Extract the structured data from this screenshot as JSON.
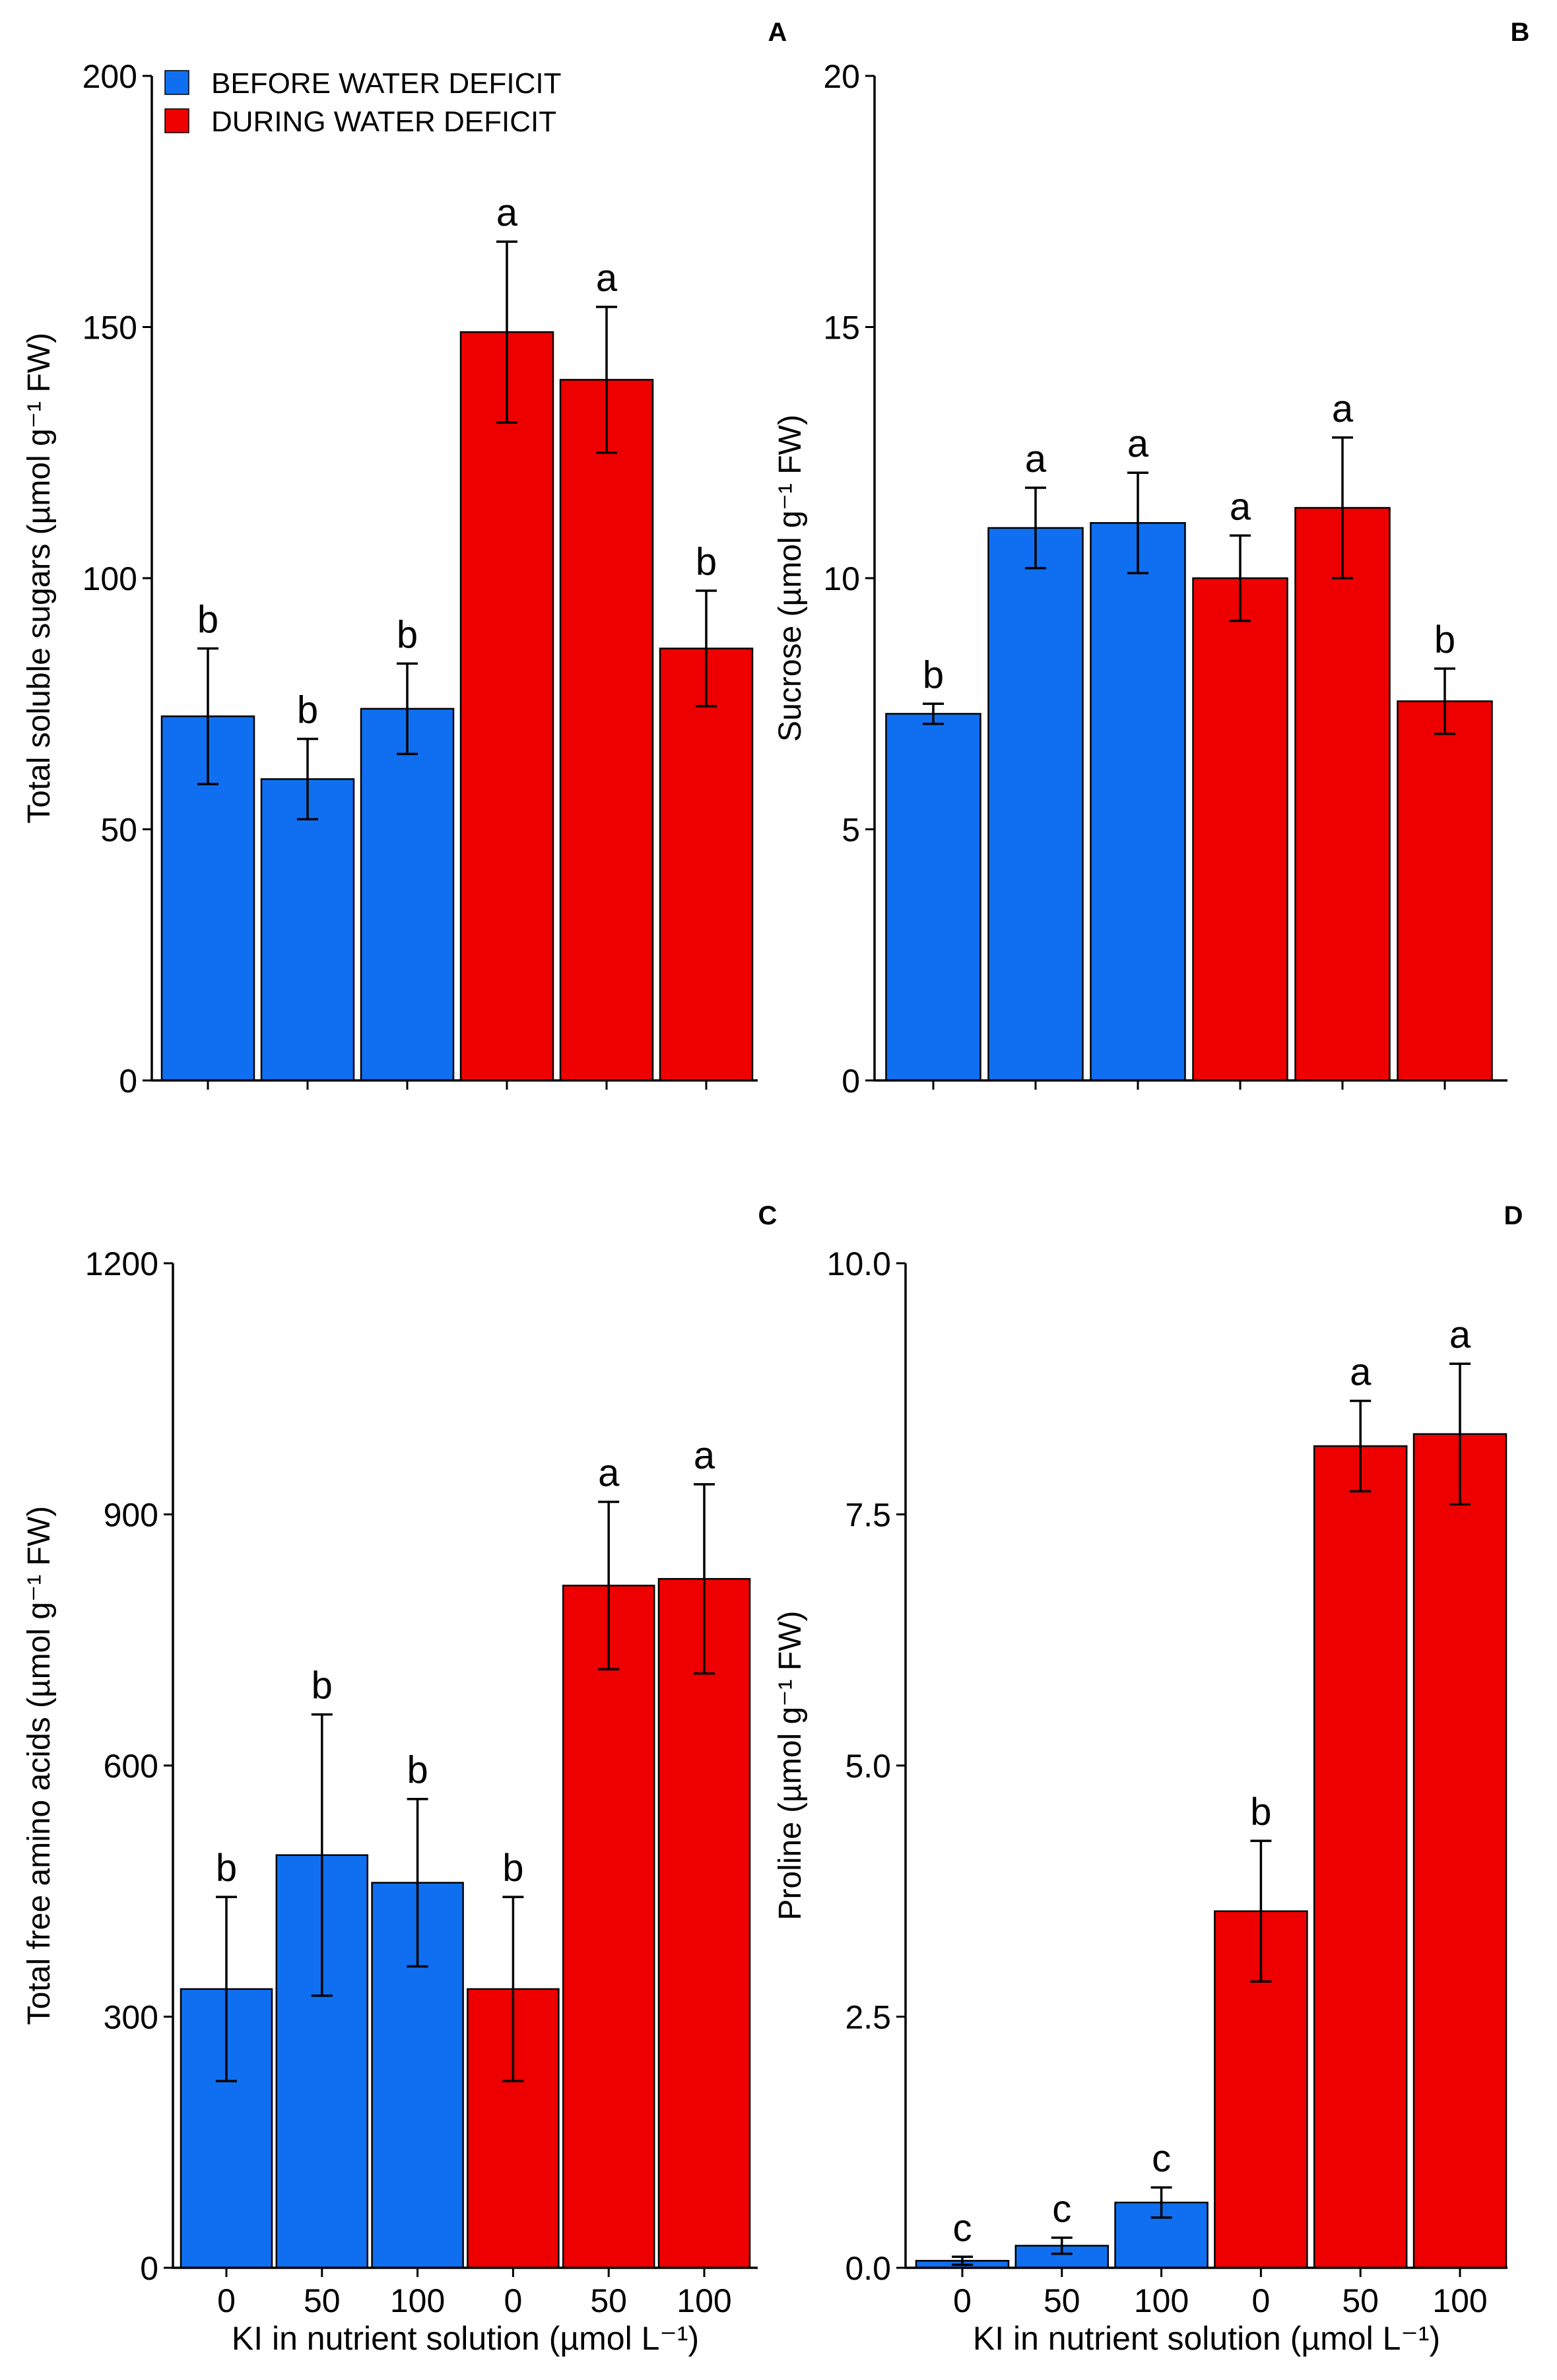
{
  "colors": {
    "before": "#0f6ff0",
    "during": "#ee0000",
    "axis": "#000000"
  },
  "legend": {
    "before_label": "BEFORE WATER DEFICIT",
    "during_label": "DURING WATER DEFICIT"
  },
  "chart_data": [
    {
      "panel": "A",
      "type": "bar",
      "ylabel": "Total soluble sugars (µmol  g⁻¹ FW)",
      "xlabel": "",
      "ylim": [
        0,
        200
      ],
      "yticks": [
        "0",
        "50",
        "100",
        "150",
        "200"
      ],
      "yticks_values": [
        0,
        50,
        100,
        150,
        200
      ],
      "categories": [
        "0",
        "50",
        "100",
        "0",
        "50",
        "100"
      ],
      "show_category_labels": false,
      "groups": [
        "before",
        "before",
        "before",
        "during",
        "during",
        "during"
      ],
      "values": [
        72.5,
        60,
        74,
        149,
        139.5,
        86
      ],
      "errors": [
        13.5,
        8,
        9,
        18,
        14.5,
        11.5
      ],
      "letters": [
        "b",
        "b",
        "b",
        "a",
        "a",
        "b"
      ],
      "legend_position": "top-left"
    },
    {
      "panel": "B",
      "type": "bar",
      "ylabel": "Sucrose (µmol g⁻¹ FW)",
      "xlabel": "",
      "ylim": [
        0,
        20
      ],
      "yticks": [
        "0",
        "5",
        "10",
        "15",
        "20"
      ],
      "yticks_values": [
        0,
        5,
        10,
        15,
        20
      ],
      "categories": [
        "0",
        "50",
        "100",
        "0",
        "50",
        "100"
      ],
      "show_category_labels": false,
      "groups": [
        "before",
        "before",
        "before",
        "during",
        "during",
        "during"
      ],
      "values": [
        7.3,
        11,
        11.1,
        10,
        11.4,
        7.55
      ],
      "errors": [
        0.2,
        0.8,
        1.0,
        0.85,
        1.4,
        0.65
      ],
      "letters": [
        "b",
        "a",
        "a",
        "a",
        "a",
        "b"
      ]
    },
    {
      "panel": "C",
      "type": "bar",
      "ylabel": "Total free amino acids (µmol g⁻¹ FW)",
      "xlabel": "KI in nutrient solution (µmol L⁻¹)",
      "ylim": [
        0,
        1200
      ],
      "yticks": [
        "0",
        "300",
        "600",
        "900",
        "1200"
      ],
      "yticks_values": [
        0,
        300,
        600,
        900,
        1200
      ],
      "categories": [
        "0",
        "50",
        "100",
        "0",
        "50",
        "100"
      ],
      "show_category_labels": true,
      "groups": [
        "before",
        "before",
        "before",
        "during",
        "during",
        "during"
      ],
      "values": [
        333,
        493,
        460,
        333,
        815,
        823
      ],
      "errors": [
        110,
        168,
        100,
        110,
        100,
        113
      ],
      "letters": [
        "b",
        "b",
        "b",
        "b",
        "a",
        "a"
      ]
    },
    {
      "panel": "D",
      "type": "bar",
      "ylabel": "Proline (µmol g⁻¹ FW)",
      "xlabel": "KI in nutrient solution (µmol L⁻¹)",
      "ylim": [
        0,
        10
      ],
      "yticks": [
        "0.0",
        "2.5",
        "5.0",
        "7.5",
        "10.0"
      ],
      "yticks_values": [
        0,
        2.5,
        5,
        7.5,
        10
      ],
      "categories": [
        "0",
        "50",
        "100",
        "0",
        "50",
        "100"
      ],
      "show_category_labels": true,
      "groups": [
        "before",
        "before",
        "before",
        "during",
        "during",
        "during"
      ],
      "values": [
        0.07,
        0.22,
        0.65,
        3.55,
        8.18,
        8.3
      ],
      "errors": [
        0.04,
        0.08,
        0.15,
        0.7,
        0.45,
        0.7
      ],
      "letters": [
        "c",
        "c",
        "c",
        "b",
        "a",
        "a"
      ]
    }
  ]
}
